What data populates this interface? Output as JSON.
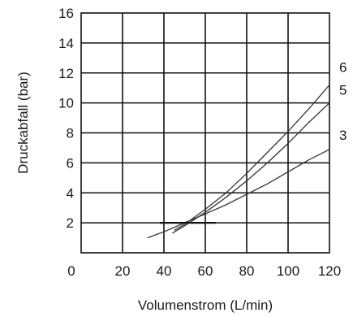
{
  "chart_data": {
    "type": "line",
    "title": "",
    "xlabel": "Volumenstrom (L/min)",
    "ylabel": "Druckabfall (bar)",
    "xlim": [
      0,
      120
    ],
    "ylim": [
      0,
      16
    ],
    "x_ticks": [
      0,
      20,
      40,
      60,
      80,
      100,
      120
    ],
    "x_tick_labels": [
      "0",
      "20",
      "40",
      "60",
      "80",
      "100",
      "120"
    ],
    "y_ticks": [
      2,
      4,
      6,
      8,
      10,
      12,
      14,
      16
    ],
    "y_tick_labels": [
      "2",
      "4",
      "6",
      "8",
      "10",
      "12",
      "14",
      "16"
    ],
    "grid": true,
    "series": [
      {
        "name": "6",
        "x": [
          45,
          50,
          60,
          70,
          80,
          90,
          100,
          110,
          120
        ],
        "y": [
          1.5,
          1.9,
          2.9,
          4.0,
          5.3,
          6.7,
          8.1,
          9.6,
          11.2
        ]
      },
      {
        "name": "5",
        "x": [
          44,
          50,
          60,
          70,
          80,
          90,
          100,
          110,
          120
        ],
        "y": [
          1.3,
          1.8,
          2.7,
          3.7,
          4.8,
          6.0,
          7.3,
          8.7,
          10.0
        ]
      },
      {
        "name": "3",
        "x": [
          32,
          40,
          50,
          60,
          70,
          80,
          90,
          100,
          110,
          120
        ],
        "y": [
          1.0,
          1.4,
          2.0,
          2.6,
          3.2,
          3.9,
          4.6,
          5.4,
          6.2,
          6.9
        ]
      }
    ],
    "segments": [
      {
        "x": [
          38,
          65
        ],
        "y": [
          2.0,
          2.0
        ]
      }
    ]
  }
}
